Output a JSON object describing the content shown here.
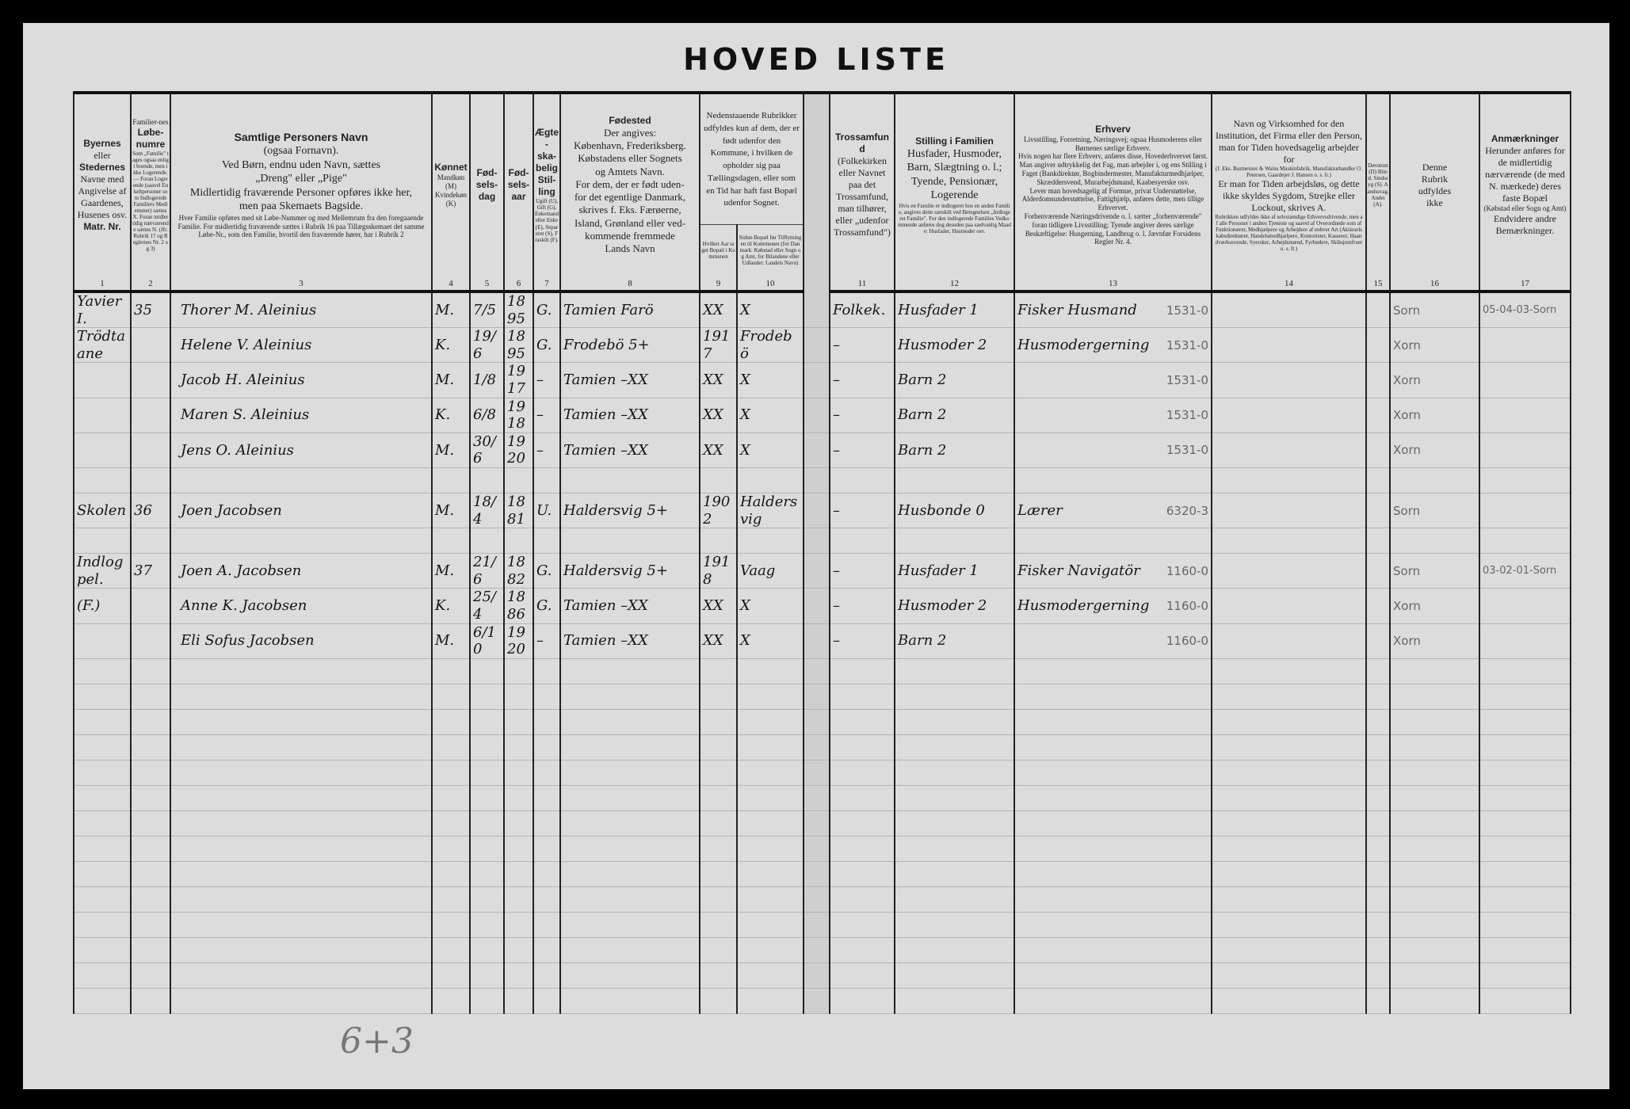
{
  "title": "HOVED LISTE",
  "headers": {
    "c1": {
      "bold1": "Byernes",
      "t1": "eller",
      "bold2": "Stedernes",
      "t2": "Navne med Angivelse af Gaardenes, Husenes osv.",
      "bold3": "Matr. Nr.",
      "num": "1"
    },
    "c2": {
      "t1": "Familier-nes",
      "bold": "Løbe-numre",
      "tiny": "Som „Familie\" tages ogsaa enligt boende, men ikke Logerende. — Foran Logerende (saavel Enkeltpersoner som Indlogerede Familiers Medlemmer) sættes X. Foran midlertidig nærværende sættes N. (Jfr. Rubrik 17 og Reglernes Nr. 2 og 3)",
      "num": "2"
    },
    "c3": {
      "bold": "Samtlige Personers Navn",
      "t1": "(ogsaa Fornavn).\nVed Børn, endnu uden Navn, sættes\n„Dreng\" eller „Pige\"\nMidlertidig fraværende Personer opføres ikke her,\nmen paa Skemaets Bagside.",
      "small": "Hver Familie opføres med sit Løbe-Nummer og med Mellemrum fra den foregaaende Familie. For midlertidig fraværende sættes i Rubrik 16 paa Tillægsskemaet det samme Løbe-Nr., som den Familie, hvortil den fraværende hører, har i Rubrik 2",
      "num": "3"
    },
    "c4": {
      "bold": "Kønnet",
      "small": "Mandkøn (M) Kvindekøn (K)",
      "num": "4"
    },
    "c5": {
      "bold": "Fød-\nsels-\ndag",
      "num": "5"
    },
    "c6": {
      "bold": "Fød-\nsels-\naar",
      "num": "6"
    },
    "c7": {
      "bold": "Ægte-\nska-\nbelig\nStil-\nling",
      "tiny": "Ugift (U), Gift (G), Enkemand eller Enke (E), Separeret (S), Fraskilt (F).",
      "num": "7"
    },
    "c8": {
      "bold": "Fødested",
      "t1": "Der angives:\nKøbenhavn, Frederiksberg.\nKøbstadens eller Sognets\nog Amtets Navn.\nFor dem, der er født uden-\nfor det egentlige Danmark,\nskrives f. Eks. Færøerne,\nIsland, Grønland eller ved-\nkommende fremmede\nLands Navn",
      "num": "8"
    },
    "c9_10": {
      "t1": "Nedenstaaende Rubrikker udfyldes kun af dem, der er født udenfor den Kommune, i hvilken de opholder sig paa Tællingsdagen, eller som en Tid har haft fast Bopæl udenfor Sognet."
    },
    "c9": {
      "tiny": "Hvilket Aar taget Bopæl i Kommunen",
      "num": "9"
    },
    "c10": {
      "tiny": "Sidste Bopæl før Tilflytningen til Kommunen (for Danmark: Købstad eller Sogn og Amt, for Bilandene eller Udlandet: Landets Navn)",
      "num": "10"
    },
    "c11": {
      "bold": "Trossamfund",
      "t1": "(Folkekirken eller Navnet paa det Trossamfund, man tilhører, eller „udenfor Trossamfund\")",
      "num": "11"
    },
    "c12": {
      "bold": "Stilling i Familien",
      "t1": "Husfader, Husmoder,\nBarn, Slægtning o. l.;\nTyende, Pensionær,\nLogerende",
      "tiny": "Hvis en Familie er indlogeret hos en anden Familie, angives dette særskilt ved Betegnelsen „Indlogeret Familie\". For den indlogerede Families Vedkommende anføres dog desuden paa sædvanlig Maade: Husfader, Husmoder osv.",
      "num": "12"
    },
    "c13": {
      "bold": "Erhverv",
      "small": "Livsstilling, Forretning, Næringsvej; ogsaa Husmoderens eller Børnenes særlige Erhverv.\nHvis nogen har flere Erhverv, anføres disse, Hovederhvervet først.\nMan angiver udtrykkelig det Fag, man arbejder i, og ens Stilling i Faget (Bankdirektør, Bogbindermester, Manufakturmedhjælper, Skræddersvend, Murarbejdsmand, Kaabesyerske osv.\nLever man hovedsagelig af Formue, privat Understøttelse, Alderdomsunderstøttelse, Fattighjælp, anføres dette, men tillige Erhvervet.\nForhenværende Næringsdrivende o. l. sætter „forhenværende\" foran tidligere Livsstilling; Tyende angiver deres særlige Beskæftigelse: Husgerning, Landbrug o. l. Jævnfør Forsidens Regler Nr. 4.",
      "num": "13"
    },
    "c14": {
      "t1": "Navn og Virksomhed for den Institution, det Firma eller den Person, man for Tiden hovedsagelig arbejder for",
      "tiny1": "(f. Eks. Burmeister & Wains Maskinfabrik, Manufakturhandler O. Petersen, Gaardejer J. Hansen o. s. fr.)",
      "t2": "Er man for Tiden arbejdsløs, og dette ikke skyldes Sygdom, Strejke eller Lockout, skrives A.",
      "tiny2": "Rubrikken udfyldes ikke af selvstændige Erhvervsdrivende, men af alle Personer i andres Tjeneste og saavel af Overordnede som af Funktionærer, Medhjælpere og Arbejdere af enhver Art (Aktieselskabsdirektører, Handelsmedhjælpere, Kontorister, Kasserer, Haandværkssvende, Syersker, Arbejdsmænd, Fyrbødere, Skibsjomfruer o. s. fr.)",
      "num": "14"
    },
    "c15": {
      "tiny": "Døvstum (D) Blind. Sindssyg (S). Aandssvag. Andet (A).",
      "num": "15"
    },
    "c16": {
      "t1": "Denne\nRubrik\nudfyldes\nikke",
      "num": "16"
    },
    "c17": {
      "bold": "Anmærkninger",
      "t1": "Herunder anføres for de midlertidig nærværende (de med N. mærkede) deres faste Bopæl",
      "small": "(Købstad eller Sogn og Amt)",
      "t2": "Endvidere andre Bemærkninger.",
      "num": "17"
    }
  },
  "rows": [
    {
      "place": "Yavier I.",
      "num": "35",
      "name": "Thorer M. Aleinius",
      "sex": "M.",
      "day": "7/5",
      "year": "1895",
      "civil": "G.",
      "birthplace": "Tamien Farö",
      "c9": "XX",
      "c10": "X",
      "faith": "Folkek.",
      "position": "Husfader 1",
      "occupation": "Fisker Husmand",
      "income": "1531-0",
      "c16": "Sorn",
      "c17": "05-04-03-Sorn"
    },
    {
      "place": "Trödtaane",
      "num": "",
      "name": "Helene V. Aleinius",
      "sex": "K.",
      "day": "19/6",
      "year": "1895",
      "civil": "G.",
      "birthplace": "Frodebö 5+",
      "c9": "1917",
      "c10": "Frodebö",
      "faith": "–",
      "position": "Husmoder 2",
      "occupation": "Husmodergerning",
      "income": "1531-0",
      "c16": "Xorn",
      "c17": ""
    },
    {
      "place": "",
      "num": "",
      "name": "Jacob H. Aleinius",
      "sex": "M.",
      "day": "1/8",
      "year": "1917",
      "civil": "–",
      "birthplace": "Tamien –XX",
      "c9": "XX",
      "c10": "X",
      "faith": "–",
      "position": "Barn 2",
      "occupation": "",
      "income": "1531-0",
      "c16": "Xorn",
      "c17": ""
    },
    {
      "place": "",
      "num": "",
      "name": "Maren S. Aleinius",
      "sex": "K.",
      "day": "6/8",
      "year": "1918",
      "civil": "–",
      "birthplace": "Tamien –XX",
      "c9": "XX",
      "c10": "X",
      "faith": "–",
      "position": "Barn 2",
      "occupation": "",
      "income": "1531-0",
      "c16": "Xorn",
      "c17": ""
    },
    {
      "place": "",
      "num": "",
      "name": "Jens O. Aleinius",
      "sex": "M.",
      "day": "30/6",
      "year": "1920",
      "civil": "–",
      "birthplace": "Tamien –XX",
      "c9": "XX",
      "c10": "X",
      "faith": "–",
      "position": "Barn 2",
      "occupation": "",
      "income": "1531-0",
      "c16": "Xorn",
      "c17": ""
    },
    {},
    {
      "place": "Skolen",
      "num": "36",
      "name": "Joen Jacobsen",
      "sex": "M.",
      "day": "18/4",
      "year": "1881",
      "civil": "U.",
      "birthplace": "Haldersvig 5+",
      "c9": "1902",
      "c10": "Haldersvig",
      "faith": "–",
      "position": "Husbonde 0",
      "occupation": "Lærer",
      "income": "6320-3",
      "c16": "Sorn",
      "c17": ""
    },
    {},
    {
      "place": "Indlogpel.",
      "num": "37",
      "name": "Joen A. Jacobsen",
      "sex": "M.",
      "day": "21/6",
      "year": "1882",
      "civil": "G.",
      "birthplace": "Haldersvig 5+",
      "c9": "1918",
      "c10": "Vaag",
      "faith": "–",
      "position": "Husfader 1",
      "occupation": "Fisker Navigatör",
      "income": "1160-0",
      "c16": "Sorn",
      "c17": "03-02-01-Sorn"
    },
    {
      "place": "(F.)",
      "num": "",
      "name": "Anne K. Jacobsen",
      "sex": "K.",
      "day": "25/4",
      "year": "1886",
      "civil": "G.",
      "birthplace": "Tamien –XX",
      "c9": "XX",
      "c10": "X",
      "faith": "–",
      "position": "Husmoder 2",
      "occupation": "Husmodergerning",
      "income": "1160-0",
      "c16": "Xorn",
      "c17": ""
    },
    {
      "place": "",
      "num": "",
      "name": "Eli Sofus Jacobsen",
      "sex": "M.",
      "day": "6/10",
      "year": "1920",
      "civil": "–",
      "birthplace": "Tamien –XX",
      "c9": "XX",
      "c10": "X",
      "faith": "–",
      "position": "Barn 2",
      "occupation": "",
      "income": "1160-0",
      "c16": "Xorn",
      "c17": ""
    }
  ],
  "bottom_note": "6+3"
}
